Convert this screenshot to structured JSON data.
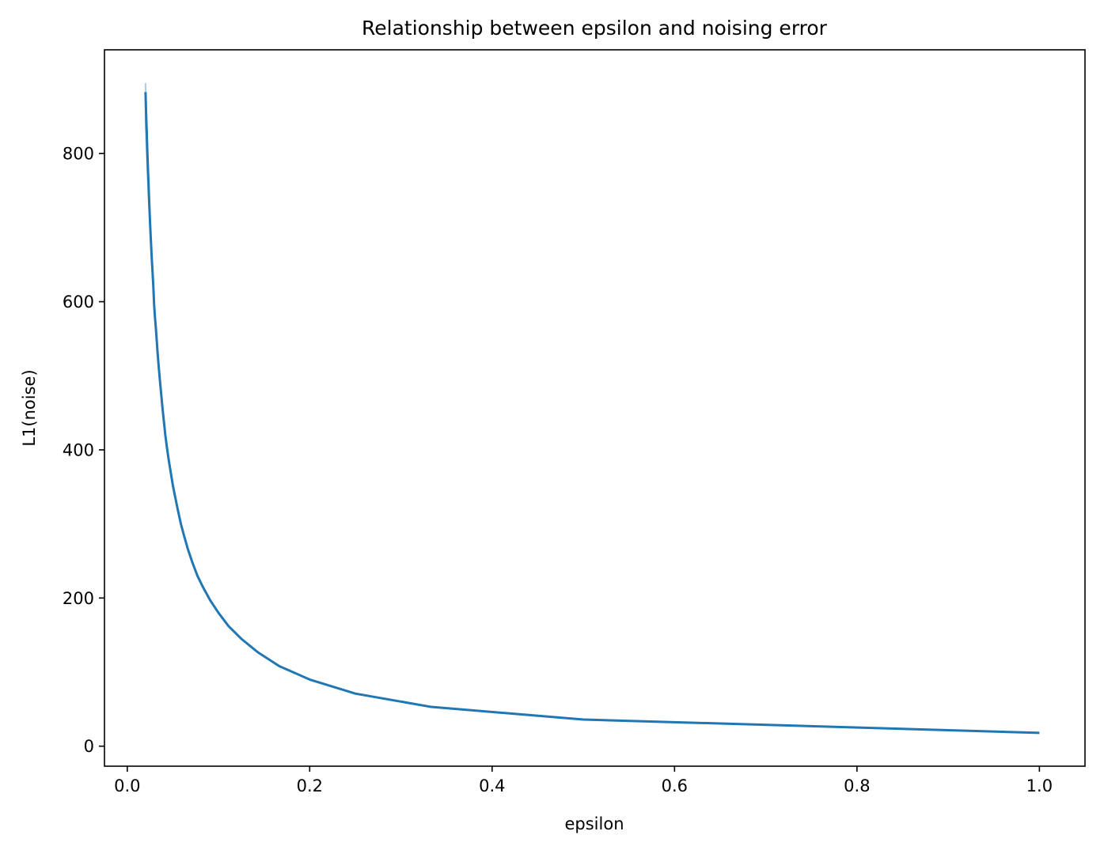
{
  "chart_data": {
    "type": "line",
    "title": "Relationship between epsilon and noising error",
    "xlabel": "epsilon",
    "ylabel": "L1(noise)",
    "xlim": [
      -0.025,
      1.05
    ],
    "ylim": [
      -27,
      940
    ],
    "xticks": [
      0.0,
      0.2,
      0.4,
      0.6,
      0.8,
      1.0
    ],
    "xtick_labels": [
      "0.0",
      "0.2",
      "0.4",
      "0.6",
      "0.8",
      "1.0"
    ],
    "yticks": [
      0,
      200,
      400,
      600,
      800
    ],
    "ytick_labels": [
      "0",
      "200",
      "400",
      "600",
      "800"
    ],
    "grid": false,
    "line_color": "#1f77b4",
    "band_color": "#aecbe6",
    "series": [
      {
        "x": [
          0.02,
          0.0204,
          0.0208,
          0.0213,
          0.0217,
          0.0222,
          0.0227,
          0.0233,
          0.0238,
          0.0244,
          0.025,
          0.0256,
          0.0263,
          0.027,
          0.0278,
          0.0286,
          0.0294,
          0.0303,
          0.0313,
          0.0323,
          0.0333,
          0.0345,
          0.0357,
          0.037,
          0.0385,
          0.04,
          0.0417,
          0.0435,
          0.0455,
          0.0476,
          0.05,
          0.0526,
          0.0556,
          0.0588,
          0.0625,
          0.0667,
          0.0714,
          0.0769,
          0.0833,
          0.0909,
          0.1,
          0.1111,
          0.125,
          0.1429,
          0.1667,
          0.2,
          0.25,
          0.3333,
          0.5,
          1.0
        ],
        "y": [
          883,
          865,
          848,
          831,
          814,
          796,
          778,
          760,
          742,
          724,
          706,
          690,
          672,
          655,
          638,
          620,
          597,
          580,
          565,
          548,
          530,
          512,
          495,
          478,
          458,
          440,
          420,
          403,
          386,
          370,
          352,
          336,
          318,
          300,
          283,
          265,
          248,
          230,
          214,
          197,
          180,
          162,
          145,
          127,
          108,
          90,
          71,
          53,
          36,
          18
        ]
      }
    ],
    "band": {
      "x": [
        0.02,
        0.0222,
        0.025
      ],
      "y_low": [
        840,
        770,
        700
      ],
      "y_high": [
        895,
        805,
        712
      ]
    }
  }
}
